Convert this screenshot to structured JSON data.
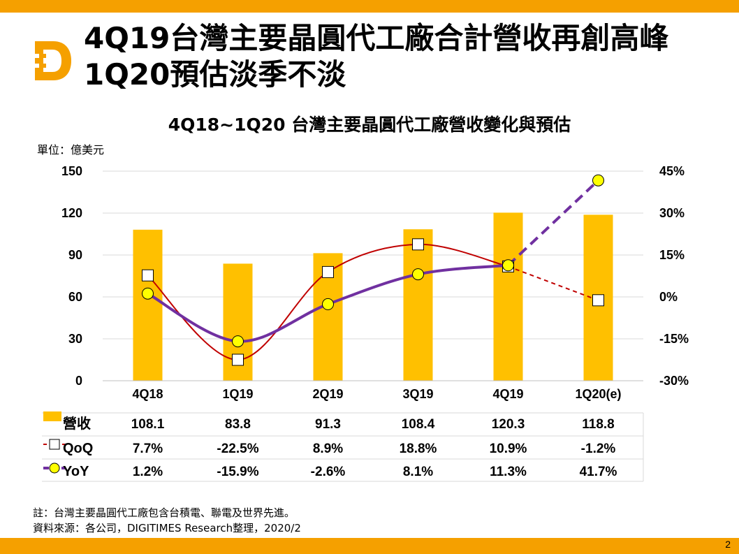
{
  "header": {
    "title_line1": "4Q19台灣主要晶圓代工廠合計營收再創高峰",
    "title_line2": "1Q20預估淡季不淡"
  },
  "unit_label": "單位：億美元",
  "notes": {
    "note": "註：台灣主要晶圓代工廠包含台積電、聯電及世界先進。",
    "source": "資料來源：各公司，DIGITIMES Research整理，2020/2"
  },
  "page_number": "2",
  "colors": {
    "band": "#f5a000",
    "bar": "#ffc000",
    "qoq_line": "#c00000",
    "yoy_line": "#7030a0",
    "yoy_marker": "#ffff00"
  },
  "chart_data": {
    "type": "bar",
    "title": "4Q18~1Q20 台灣主要晶圓代工廠營收變化與預估",
    "categories": [
      "4Q18",
      "1Q19",
      "2Q19",
      "3Q19",
      "4Q19",
      "1Q20(e)"
    ],
    "y_left": {
      "min": 0,
      "max": 150,
      "ticks": [
        "150",
        "120",
        "90",
        "60",
        "30",
        "0"
      ],
      "tick_values": [
        150,
        120,
        90,
        60,
        30,
        0
      ]
    },
    "y_right": {
      "min": -30,
      "max": 45,
      "ticks": [
        "45%",
        "30%",
        "15%",
        "0%",
        "-15%",
        "-30%"
      ],
      "tick_values": [
        45,
        30,
        15,
        0,
        -15,
        -30
      ]
    },
    "grid": true,
    "series": [
      {
        "name": "營收",
        "kind": "bar",
        "axis": "left",
        "values": [
          108.1,
          83.8,
          91.3,
          108.4,
          120.3,
          118.8
        ],
        "labels": [
          "108.1",
          "83.8",
          "91.3",
          "108.4",
          "120.3",
          "118.8"
        ]
      },
      {
        "name": "QoQ",
        "kind": "line",
        "axis": "right",
        "values": [
          7.7,
          -22.5,
          8.9,
          18.8,
          10.9,
          -1.2
        ],
        "labels": [
          "7.7%",
          "-22.5%",
          "8.9%",
          "18.8%",
          "10.9%",
          "-1.2%"
        ],
        "estimate_dashed_last": true
      },
      {
        "name": "YoY",
        "kind": "line",
        "axis": "right",
        "values": [
          1.2,
          -15.9,
          -2.6,
          8.1,
          11.3,
          41.7
        ],
        "labels": [
          "1.2%",
          "-15.9%",
          "-2.6%",
          "8.1%",
          "11.3%",
          "41.7%"
        ],
        "estimate_dashed_last": true
      }
    ],
    "legend": "data-table-below"
  }
}
